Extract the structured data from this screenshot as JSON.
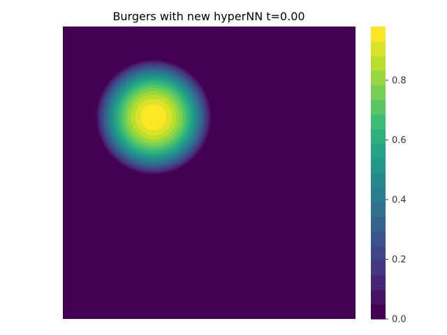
{
  "chart_data": {
    "type": "heatmap",
    "title": "Burgers with new hyperNN t=0.00",
    "xlabel": "",
    "ylabel": "",
    "colormap": "viridis",
    "colorbar_levels": 20,
    "colorbar": {
      "range": [
        0.0,
        0.98
      ],
      "ticks": [
        0.0,
        0.2,
        0.4,
        0.6,
        0.8
      ],
      "tick_labels": [
        "0.0",
        "0.2",
        "0.4",
        "0.6",
        "0.8"
      ]
    },
    "domain": {
      "x": [
        0,
        1
      ],
      "y": [
        0,
        1
      ]
    },
    "field": {
      "description_of_values": "single gaussian bump",
      "center_x": 0.31,
      "center_y": 0.69,
      "peak": 0.98,
      "support_radius": 0.2,
      "outside_value": 0.0
    },
    "axes_visible": false,
    "grid": false
  }
}
